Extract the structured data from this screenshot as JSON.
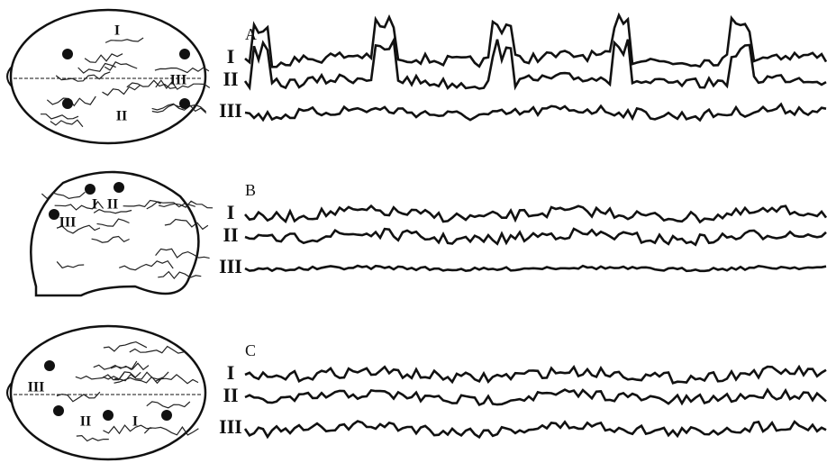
{
  "panels": [
    {
      "label": "A",
      "channels": [
        "I",
        "II",
        "III"
      ],
      "electrodes": [
        "I",
        "II",
        "III"
      ]
    },
    {
      "label": "B",
      "channels": [
        "I",
        "II",
        "III"
      ],
      "electrodes": [
        "I",
        "II",
        "III"
      ]
    },
    {
      "label": "C",
      "channels": [
        "I",
        "II",
        "III"
      ],
      "electrodes": [
        "I",
        "II",
        "III"
      ]
    }
  ]
}
